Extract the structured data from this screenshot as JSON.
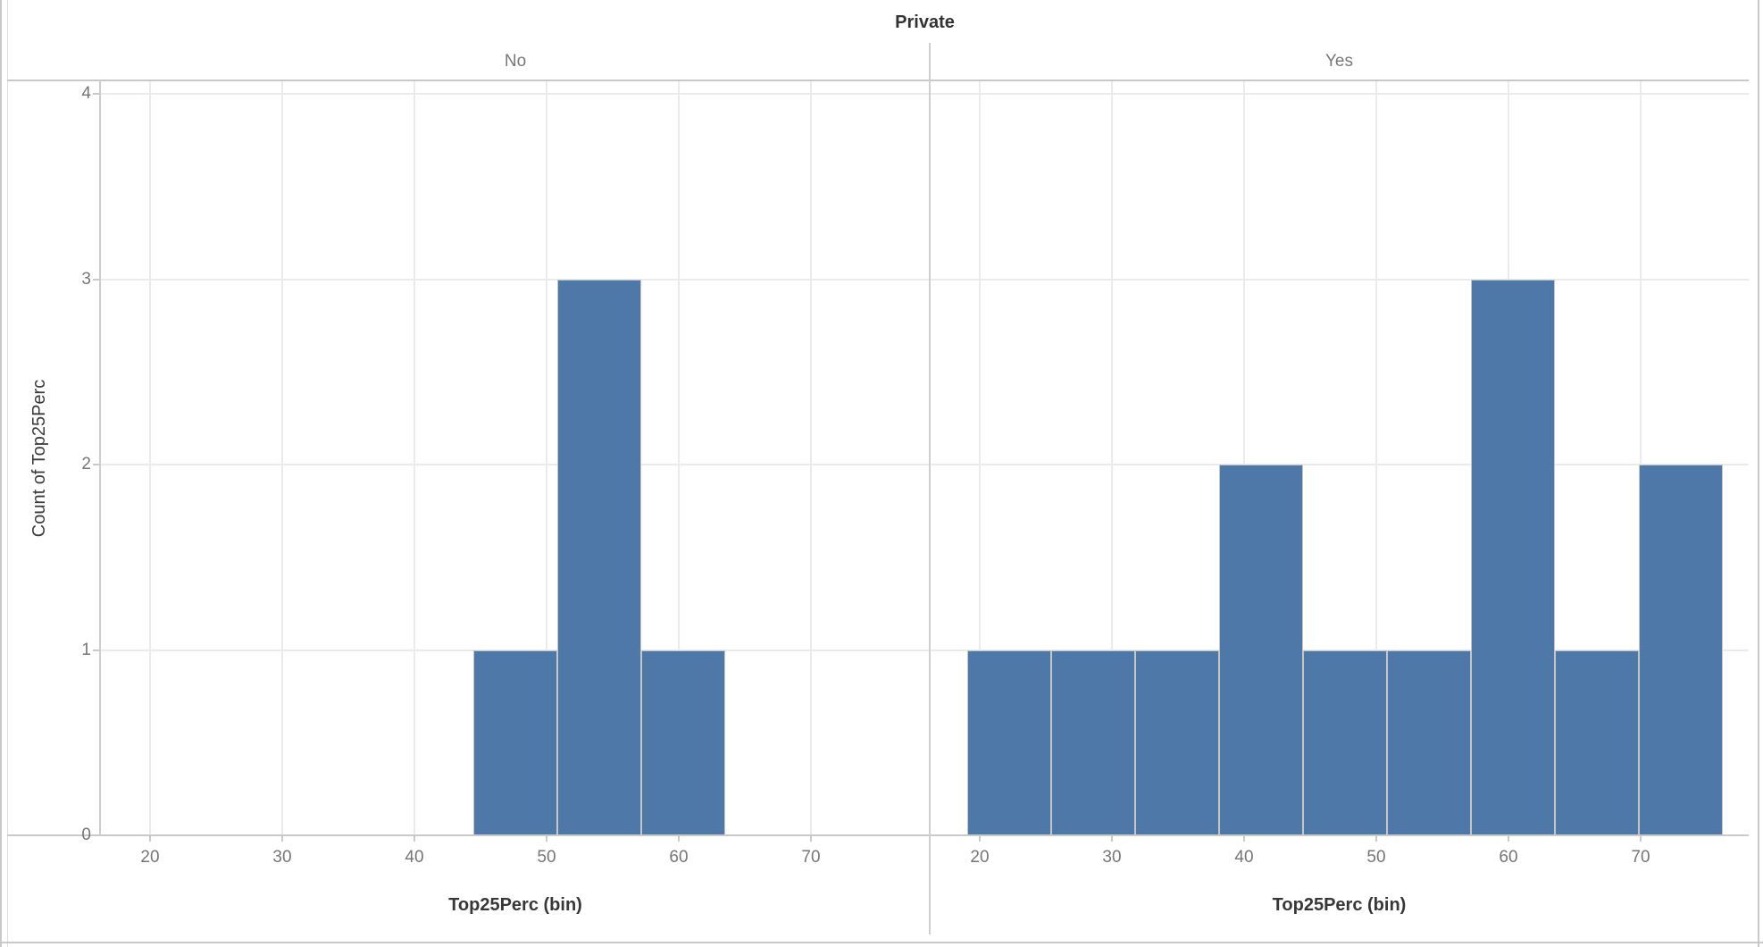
{
  "title": "Private",
  "colors": {
    "bar_fill": "#4e78a8",
    "bar_border": "#c6c6c6",
    "gridline": "#ebebeb",
    "axis_line": "#c9c9c9",
    "tick_label": "#767676",
    "facet_label": "#787878",
    "title_text": "#333333"
  },
  "chart_data": {
    "type": "bar",
    "subtype": "histogram",
    "title": "Private",
    "facet_field": "Private",
    "xlabel": "Top25Perc (bin)",
    "ylabel": "Count of Top25Perc",
    "x_ticks": [
      20,
      30,
      40,
      50,
      60,
      70
    ],
    "y_ticks": [
      0,
      1,
      2,
      3,
      4
    ],
    "xlim": [
      16.3,
      79.0
    ],
    "ylim": [
      0,
      4.07
    ],
    "bin_width": 6.35,
    "grid": true,
    "legend": "none",
    "facets": [
      {
        "label": "No",
        "bins": [
          {
            "x0": 44.45,
            "x1": 50.8,
            "count": 1
          },
          {
            "x0": 50.8,
            "x1": 57.15,
            "count": 3
          },
          {
            "x0": 57.15,
            "x1": 63.5,
            "count": 1
          }
        ]
      },
      {
        "label": "Yes",
        "bins": [
          {
            "x0": 19.05,
            "x1": 25.4,
            "count": 1
          },
          {
            "x0": 25.4,
            "x1": 31.75,
            "count": 1
          },
          {
            "x0": 31.75,
            "x1": 38.1,
            "count": 1
          },
          {
            "x0": 38.1,
            "x1": 44.45,
            "count": 2
          },
          {
            "x0": 44.45,
            "x1": 50.8,
            "count": 1
          },
          {
            "x0": 50.8,
            "x1": 57.15,
            "count": 1
          },
          {
            "x0": 57.15,
            "x1": 63.5,
            "count": 3
          },
          {
            "x0": 63.5,
            "x1": 69.85,
            "count": 1
          },
          {
            "x0": 69.85,
            "x1": 76.2,
            "count": 2
          }
        ]
      }
    ]
  }
}
